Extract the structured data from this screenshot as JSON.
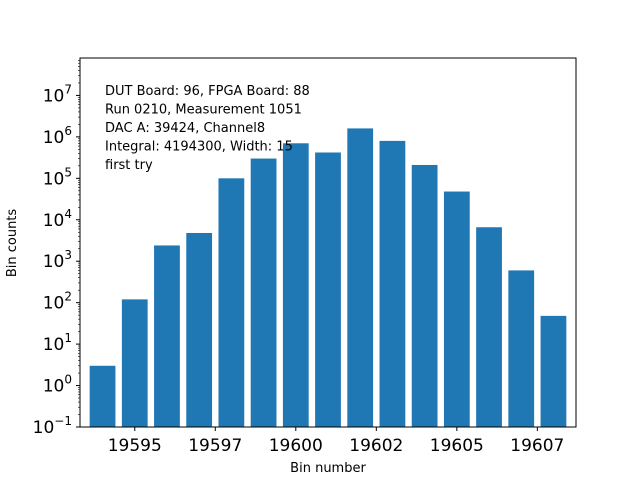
{
  "chart_data": {
    "type": "bar",
    "xlabel": "Bin number",
    "ylabel": "Bin counts",
    "yscale": "log",
    "ylim": [
      0.1,
      80000000
    ],
    "xlim": [
      19593.3,
      19608.7
    ],
    "bar_color": "#1f77b4",
    "x": [
      19594,
      19595,
      19596,
      19597,
      19598,
      19599,
      19600,
      19601,
      19602,
      19603,
      19604,
      19605,
      19606,
      19607,
      19608
    ],
    "values": [
      3,
      120,
      2400,
      4800,
      100000,
      300000,
      700000,
      420000,
      1600000,
      800000,
      210000,
      48000,
      6600,
      600,
      48
    ],
    "x_tick_labels": [
      {
        "value": 19595,
        "label": "19595"
      },
      {
        "value": 19597.5,
        "label": "19597"
      },
      {
        "value": 19600,
        "label": "19600"
      },
      {
        "value": 19602.5,
        "label": "19602"
      },
      {
        "value": 19605,
        "label": "19605"
      },
      {
        "value": 19607.5,
        "label": "19607"
      }
    ],
    "y_tick_labels": [
      {
        "exp": -1,
        "base": "10",
        "sup": "−1"
      },
      {
        "exp": 0,
        "base": "10",
        "sup": "0"
      },
      {
        "exp": 1,
        "base": "10",
        "sup": "1"
      },
      {
        "exp": 2,
        "base": "10",
        "sup": "2"
      },
      {
        "exp": 3,
        "base": "10",
        "sup": "3"
      },
      {
        "exp": 4,
        "base": "10",
        "sup": "4"
      },
      {
        "exp": 5,
        "base": "10",
        "sup": "5"
      },
      {
        "exp": 6,
        "base": "10",
        "sup": "6"
      },
      {
        "exp": 7,
        "base": "10",
        "sup": "7"
      }
    ],
    "annotations": [
      "DUT Board: 96, FPGA Board: 88",
      "Run 0210, Measurement 1051",
      "DAC A: 39424, Channel8",
      "Integral: 4194300, Width: 15",
      "first try"
    ],
    "grid": false,
    "legend": "none"
  }
}
